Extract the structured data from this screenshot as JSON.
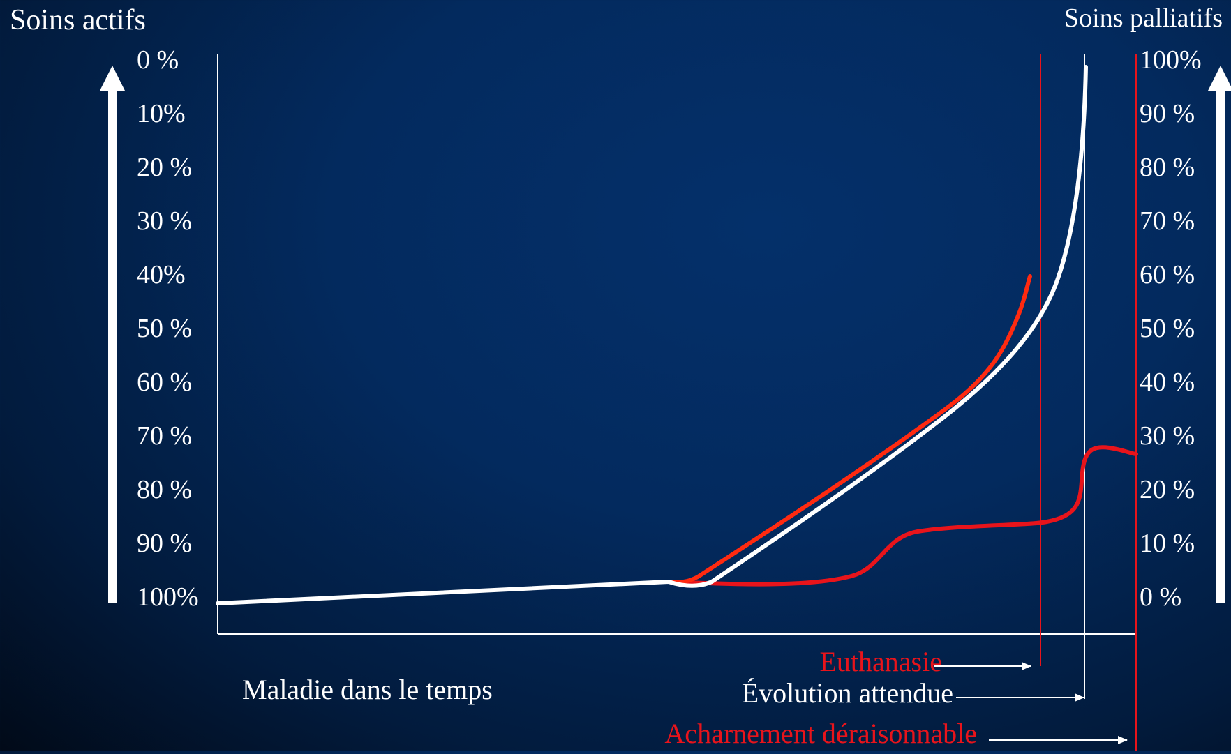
{
  "title_left": "Soins actifs",
  "title_right": "Soins palliatifs",
  "left_axis_ticks": [
    "0 %",
    "10%",
    "20 %",
    "30 %",
    "40%",
    "50 %",
    "60 %",
    "70 %",
    "80 %",
    "90 %",
    "100%"
  ],
  "right_axis_ticks": [
    "100%",
    "90 %",
    "80 %",
    "70 %",
    "60 %",
    "50 %",
    "40 %",
    "30 %",
    "20 %",
    "10 %",
    "0 %"
  ],
  "x_label": "Maladie dans le temps",
  "labels": {
    "euthanasie": "Euthanasie",
    "evolution": "Évolution attendue",
    "acharnement": "Acharnement déraisonnable"
  },
  "colors": {
    "white": "#ffffff",
    "red": "#e8141b",
    "red_orange": "#ff2a10",
    "background": "#032a5e"
  },
  "icons": [
    "up-arrow-icon",
    "right-arrow-icon"
  ]
}
